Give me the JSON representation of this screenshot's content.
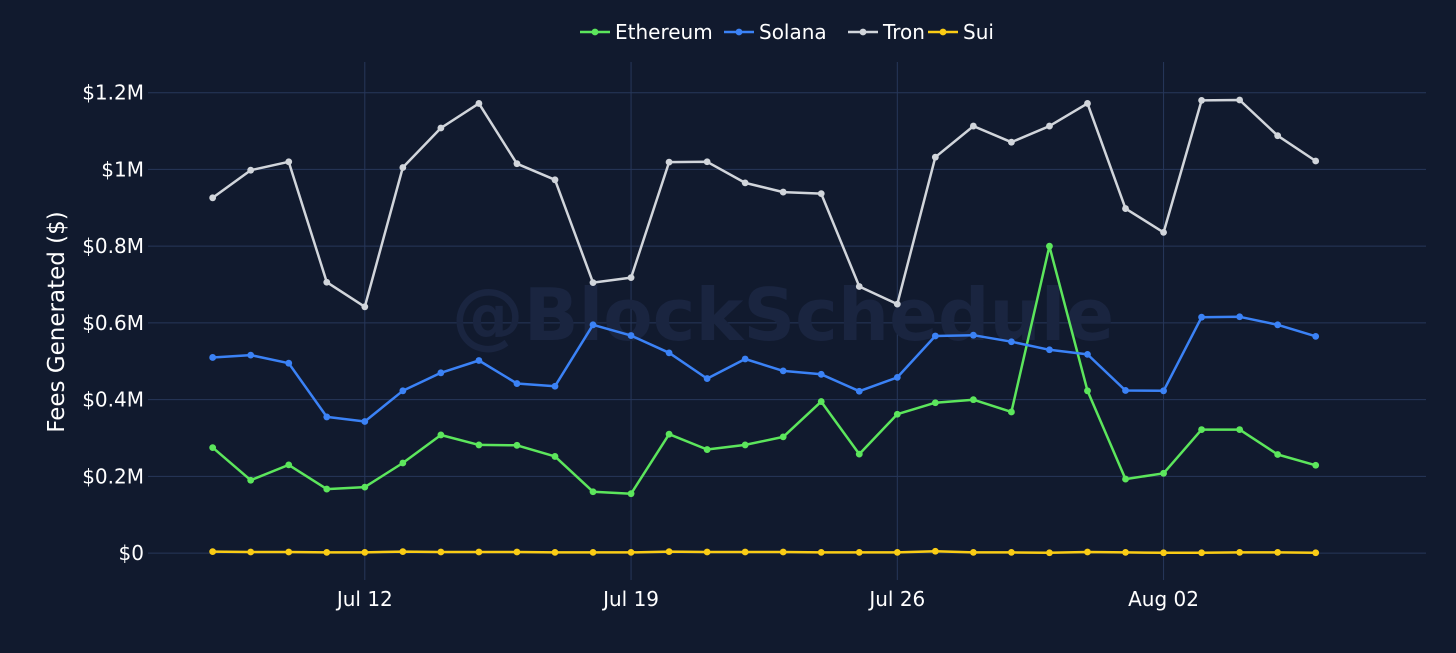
{
  "chart_data": {
    "type": "line",
    "watermark": "@BlockSchedule",
    "ylabel": "Fees Generated ($)",
    "xlabel": "",
    "ylim": [
      -70000,
      1280000
    ],
    "y_ticks": [
      {
        "value": 0,
        "label": "$0"
      },
      {
        "value": 200000,
        "label": "$0.2M"
      },
      {
        "value": 400000,
        "label": "$0.4M"
      },
      {
        "value": 600000,
        "label": "$0.6M"
      },
      {
        "value": 800000,
        "label": "$0.8M"
      },
      {
        "value": 1000000,
        "label": "$1M"
      },
      {
        "value": 1200000,
        "label": "$1.2M"
      }
    ],
    "x": [
      "Jul 08",
      "Jul 09",
      "Jul 10",
      "Jul 11",
      "Jul 12",
      "Jul 13",
      "Jul 14",
      "Jul 15",
      "Jul 16",
      "Jul 17",
      "Jul 18",
      "Jul 19",
      "Jul 20",
      "Jul 21",
      "Jul 22",
      "Jul 23",
      "Jul 24",
      "Jul 25",
      "Jul 26",
      "Jul 27",
      "Jul 28",
      "Jul 29",
      "Jul 30",
      "Jul 31",
      "Aug 01",
      "Aug 02",
      "Aug 03",
      "Aug 04",
      "Aug 05",
      "Aug 06"
    ],
    "x_ticks": [
      {
        "index": 4,
        "label": "Jul 12"
      },
      {
        "index": 11,
        "label": "Jul 19"
      },
      {
        "index": 18,
        "label": "Jul 26"
      },
      {
        "index": 25,
        "label": "Aug 02"
      }
    ],
    "x_range_index": [
      -1.7,
      31.9
    ],
    "grid": true,
    "legend_position": "top-center",
    "series": [
      {
        "name": "Ethereum",
        "color": "#5ce65c",
        "values": [
          275000,
          190000,
          230000,
          167000,
          172000,
          235000,
          308000,
          282000,
          281000,
          252000,
          160000,
          155000,
          310000,
          270000,
          282000,
          303000,
          395000,
          258000,
          362000,
          392000,
          400000,
          368000,
          800000,
          423000,
          193000,
          208000,
          322000,
          322000,
          257000,
          229000
        ]
      },
      {
        "name": "Solana",
        "color": "#3b82f6",
        "values": [
          510000,
          516000,
          495000,
          355000,
          343000,
          423000,
          470000,
          502000,
          442000,
          435000,
          595000,
          567000,
          522000,
          455000,
          506000,
          475000,
          466000,
          422000,
          458000,
          566000,
          568000,
          551000,
          530000,
          518000,
          424000,
          423000,
          615000,
          616000,
          595000,
          565000
        ]
      },
      {
        "name": "Tron",
        "color": "#d1d5db",
        "values": [
          926000,
          998000,
          1020000,
          706000,
          642000,
          1005000,
          1108000,
          1172000,
          1015000,
          973000,
          705000,
          718000,
          1019000,
          1020000,
          965000,
          941000,
          937000,
          695000,
          649000,
          1032000,
          1113000,
          1071000,
          1113000,
          1172000,
          898000,
          836000,
          1180000,
          1181000,
          1088000,
          1022000
        ]
      },
      {
        "name": "Sui",
        "color": "#facc15",
        "values": [
          4000,
          3000,
          3000,
          2000,
          2000,
          4000,
          3000,
          3000,
          3000,
          2000,
          2000,
          2000,
          4000,
          3000,
          3000,
          3000,
          2000,
          2000,
          2000,
          5000,
          2000,
          2000,
          1000,
          3000,
          2000,
          1000,
          1000,
          2000,
          2000,
          1000
        ]
      }
    ]
  }
}
